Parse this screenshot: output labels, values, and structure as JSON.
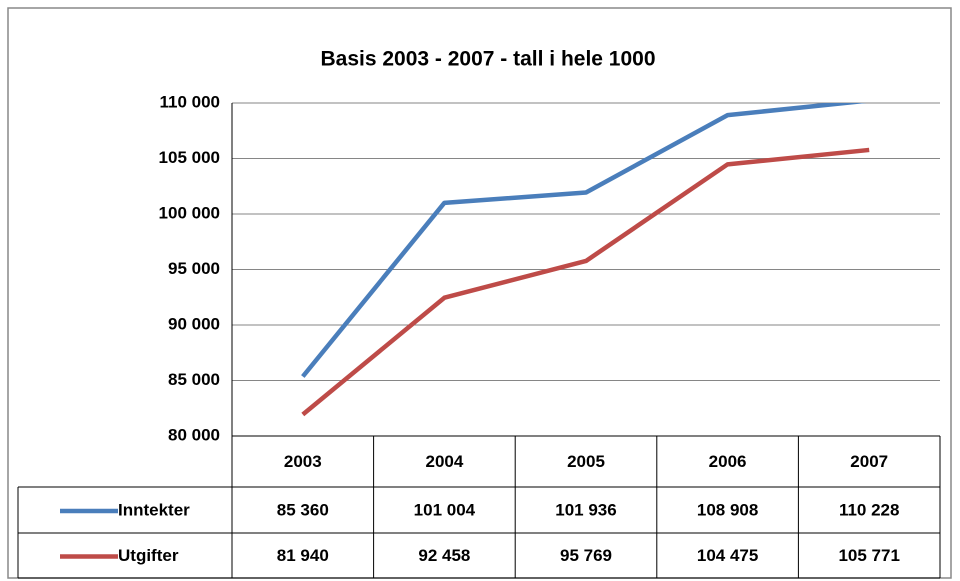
{
  "chart_data": {
    "type": "line",
    "title": "Basis 2003 - 2007 - tall i hele 1000",
    "categories": [
      "2003",
      "2004",
      "2005",
      "2006",
      "2007"
    ],
    "series": [
      {
        "name": "Inntekter",
        "color": "#4a7ebb",
        "values": [
          85360,
          101004,
          101936,
          108908,
          110228
        ],
        "value_labels": [
          "85 360",
          "101 004",
          "101 936",
          "108 908",
          "110 228"
        ]
      },
      {
        "name": "Utgifter",
        "color": "#be4b48",
        "values": [
          81940,
          92458,
          95769,
          104475,
          105771
        ],
        "value_labels": [
          "81 940",
          "92 458",
          "95 769",
          "104 475",
          "105 771"
        ]
      }
    ],
    "ylim": [
      80000,
      110000
    ],
    "yticks": [
      {
        "value": 80000,
        "label": "80 000"
      },
      {
        "value": 85000,
        "label": "85 000"
      },
      {
        "value": 90000,
        "label": "90 000"
      },
      {
        "value": 95000,
        "label": "95 000"
      },
      {
        "value": 100000,
        "label": "100 000"
      },
      {
        "value": 105000,
        "label": "105 000"
      },
      {
        "value": 110000,
        "label": "110 000"
      }
    ],
    "grid": true,
    "data_table": true
  }
}
